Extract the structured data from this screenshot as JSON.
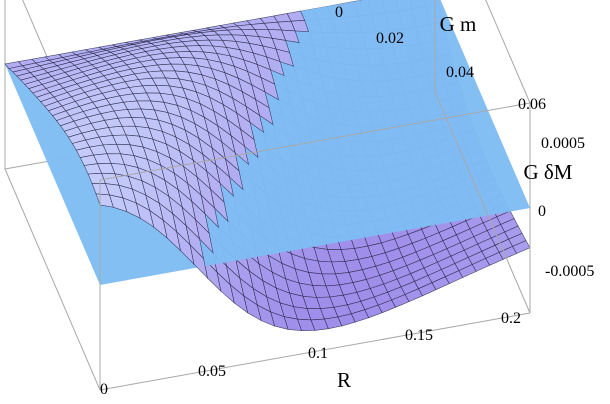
{
  "chart_data": {
    "type": "surface3d",
    "title": "",
    "axes": {
      "x": {
        "label": "R",
        "range": [
          0,
          0.21
        ],
        "ticks": [
          "0",
          "0.05",
          "0.1",
          "0.15",
          "0.2"
        ]
      },
      "y": {
        "label": "G m",
        "range": [
          0,
          0.065
        ],
        "ticks": [
          "0",
          "0.02",
          "0.04",
          "0.06"
        ]
      },
      "z": {
        "label": "G δM",
        "range": [
          -0.0008,
          0.0008
        ],
        "ticks": [
          "-0.0005",
          "0",
          "0.0005"
        ]
      }
    },
    "surfaces": [
      {
        "kind": "mesh",
        "description": "lobe surface with mesh, positive for small R, negative for large R",
        "R_range": [
          0,
          0.21
        ],
        "Gm_range": [
          0,
          0.065
        ]
      },
      {
        "kind": "plane",
        "z": 0
      }
    ],
    "colors": {
      "plane": "#7fbcf4",
      "surface_top": "#c9d3fb",
      "surface_bottom": "#9a86e8",
      "mesh": "#1b1b3a",
      "box": "#a8a8a8"
    },
    "box": true,
    "grid": false,
    "legend": "none"
  }
}
